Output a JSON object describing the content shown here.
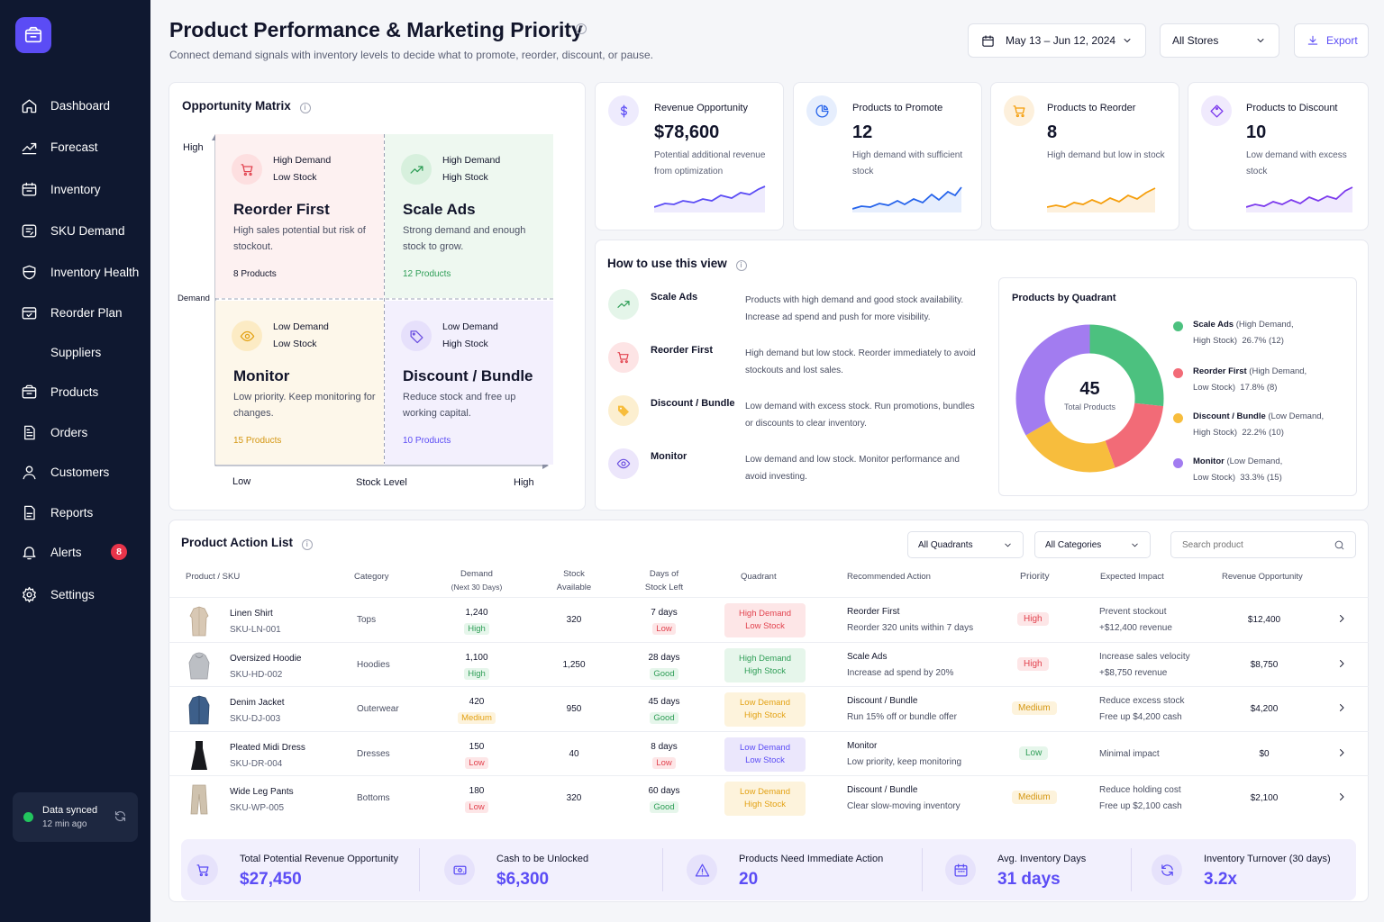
{
  "sidebar": {
    "items": [
      {
        "label": "Dashboard",
        "icon": "home-icon"
      },
      {
        "label": "Forecast",
        "icon": "trend-icon"
      },
      {
        "label": "Inventory",
        "icon": "box-icon"
      },
      {
        "label": "SKU Demand",
        "icon": "tag-icon"
      },
      {
        "label": "Inventory Health",
        "icon": "health-icon"
      },
      {
        "label": "Reorder Plan",
        "icon": "reorder-icon"
      },
      {
        "label": "Suppliers",
        "icon": ""
      },
      {
        "label": "Products",
        "icon": "package-icon"
      },
      {
        "label": "Orders",
        "icon": "orders-icon"
      },
      {
        "label": "Customers",
        "icon": "user-icon"
      },
      {
        "label": "Reports",
        "icon": "report-icon"
      },
      {
        "label": "Alerts",
        "icon": "bell-icon",
        "badge": "8"
      },
      {
        "label": "Settings",
        "icon": "gear-icon"
      }
    ],
    "sync": {
      "title": "Data synced",
      "time": "12 min ago"
    }
  },
  "header": {
    "title": "Product Performance & Marketing Priority",
    "subtitle": "Connect demand signals with inventory levels to decide what to promote, reorder, discount, or pause.",
    "date_range": "May 13 – Jun 12, 2024",
    "store": "All Stores",
    "export": "Export"
  },
  "matrix": {
    "title": "Opportunity Matrix",
    "y_high": "High",
    "y_label": "Demand",
    "x_low": "Low",
    "x_label": "Stock Level",
    "x_high": "High",
    "quadrants": [
      {
        "demand": "High Demand",
        "stock": "Low Stock",
        "name": "Reorder First",
        "desc": "High sales potential but risk of stockout.",
        "count": "8 Products"
      },
      {
        "demand": "High Demand",
        "stock": "High Stock",
        "name": "Scale Ads",
        "desc": "Strong demand and enough stock to grow.",
        "count": "12 Products"
      },
      {
        "demand": "Low Demand",
        "stock": "Low Stock",
        "name": "Monitor",
        "desc": "Low priority. Keep monitoring for changes.",
        "count": "15 Products"
      },
      {
        "demand": "Low Demand",
        "stock": "High Stock",
        "name": "Discount / Bundle",
        "desc": "Reduce stock and free up working capital.",
        "count": "10 Products"
      }
    ]
  },
  "kpis": [
    {
      "label": "Revenue Opportunity",
      "value": "$78,600",
      "desc": "Potential additional revenue from optimization",
      "color": "#5b4cf5"
    },
    {
      "label": "Products to Promote",
      "value": "12",
      "desc": "High demand with sufficient stock",
      "color": "#2563eb"
    },
    {
      "label": "Products to Reorder",
      "value": "8",
      "desc": "High demand but low in stock",
      "color": "#f59e0b"
    },
    {
      "label": "Products to Discount",
      "value": "10",
      "desc": "Low demand with excess stock",
      "color": "#7c3aed"
    }
  ],
  "howto": {
    "title": "How to use this view",
    "rows": [
      {
        "name": "Scale Ads",
        "desc": "Products with high demand and good stock availability. Increase ad spend and push for more visibility."
      },
      {
        "name": "Reorder First",
        "desc": "High demand but low stock. Reorder immediately to avoid stockouts and lost sales."
      },
      {
        "name": "Discount / Bundle",
        "desc": "Low demand with excess stock. Run promotions, bundles or discounts to clear inventory."
      },
      {
        "name": "Monitor",
        "desc": "Low demand and low stock. Monitor performance and avoid investing."
      }
    ]
  },
  "donut": {
    "title": "Products by Quadrant",
    "total": "45",
    "total_label": "Total Products",
    "segments": [
      {
        "name": "Scale Ads",
        "detail": "(High Demand,",
        "detail2": "High Stock)",
        "pct": "26.7% (12)",
        "value": 12,
        "color": "#4cc17f"
      },
      {
        "name": "Reorder First",
        "detail": "(High Demand,",
        "detail2": "Low Stock)",
        "pct": "17.8% (8)",
        "value": 8,
        "color": "#f26b77"
      },
      {
        "name": "Discount / Bundle",
        "detail": "(Low Demand,",
        "detail2": "High Stock)",
        "pct": "22.2% (10)",
        "value": 10,
        "color": "#f7bd3d"
      },
      {
        "name": "Monitor",
        "detail": "(Low Demand,",
        "detail2": "Low Stock)",
        "pct": "33.3% (15)",
        "value": 15,
        "color": "#a27cf0"
      }
    ]
  },
  "table": {
    "title": "Product Action List",
    "filters": {
      "quadrant": "All Quadrants",
      "category": "All Categories",
      "search_placeholder": "Search product"
    },
    "headers": {
      "product": "Product / SKU",
      "category": "Category",
      "demand": "Demand",
      "demand_sub": "(Next 30 Days)",
      "stock": "Stock",
      "stock_sub": "Available",
      "days": "Days of",
      "days_sub": "Stock Left",
      "quadrant": "Quadrant",
      "action": "Recommended Action",
      "priority": "Priority",
      "impact": "Expected Impact",
      "revenue": "Revenue Opportunity"
    },
    "rows": [
      {
        "name": "Linen Shirt",
        "sku": "SKU-LN-001",
        "category": "Tops",
        "demand": "1,240",
        "demand_tag": "High",
        "stock": "320",
        "days": "7 days",
        "days_tag": "Low",
        "q1": "High Demand",
        "q2": "Low Stock",
        "qtype": "reorder",
        "action": "Reorder First",
        "action_sub": "Reorder 320 units within 7 days",
        "priority": "High",
        "impact": "Prevent stockout",
        "impact_sub": "+$12,400 revenue",
        "revenue": "$12,400"
      },
      {
        "name": "Oversized Hoodie",
        "sku": "SKU-HD-002",
        "category": "Hoodies",
        "demand": "1,100",
        "demand_tag": "High",
        "stock": "1,250",
        "days": "28 days",
        "days_tag": "Good",
        "q1": "High Demand",
        "q2": "High Stock",
        "qtype": "scale",
        "action": "Scale Ads",
        "action_sub": "Increase ad spend by 20%",
        "priority": "High",
        "impact": "Increase sales velocity",
        "impact_sub": "+$8,750 revenue",
        "revenue": "$8,750"
      },
      {
        "name": "Denim Jacket",
        "sku": "SKU-DJ-003",
        "category": "Outerwear",
        "demand": "420",
        "demand_tag": "Medium",
        "stock": "950",
        "days": "45 days",
        "days_tag": "Good",
        "q1": "Low Demand",
        "q2": "High Stock",
        "qtype": "discount",
        "action": "Discount / Bundle",
        "action_sub": "Run 15% off or bundle offer",
        "priority": "Medium",
        "impact": "Reduce excess stock",
        "impact_sub": "Free up $4,200 cash",
        "revenue": "$4,200"
      },
      {
        "name": "Pleated Midi Dress",
        "sku": "SKU-DR-004",
        "category": "Dresses",
        "demand": "150",
        "demand_tag": "Low",
        "stock": "40",
        "days": "8 days",
        "days_tag": "Low",
        "q1": "Low Demand",
        "q2": "Low Stock",
        "qtype": "monitor",
        "action": "Monitor",
        "action_sub": "Low priority, keep monitoring",
        "priority": "Low",
        "impact": "Minimal impact",
        "impact_sub": "",
        "revenue": "$0"
      },
      {
        "name": "Wide Leg Pants",
        "sku": "SKU-WP-005",
        "category": "Bottoms",
        "demand": "180",
        "demand_tag": "Low",
        "stock": "320",
        "days": "60 days",
        "days_tag": "Good",
        "q1": "Low Demand",
        "q2": "High Stock",
        "qtype": "discount",
        "action": "Discount / Bundle",
        "action_sub": "Clear slow-moving inventory",
        "priority": "Medium",
        "impact": "Reduce holding cost",
        "impact_sub": "Free up $2,100 cash",
        "revenue": "$2,100"
      }
    ]
  },
  "footer": [
    {
      "label": "Total Potential Revenue Opportunity",
      "value": "$27,450"
    },
    {
      "label": "Cash to be Unlocked",
      "value": "$6,300"
    },
    {
      "label": "Products Need Immediate Action",
      "value": "20"
    },
    {
      "label": "Avg. Inventory Days",
      "value": "31 days"
    },
    {
      "label": "Inventory Turnover (30 days)",
      "value": "3.2x"
    }
  ]
}
